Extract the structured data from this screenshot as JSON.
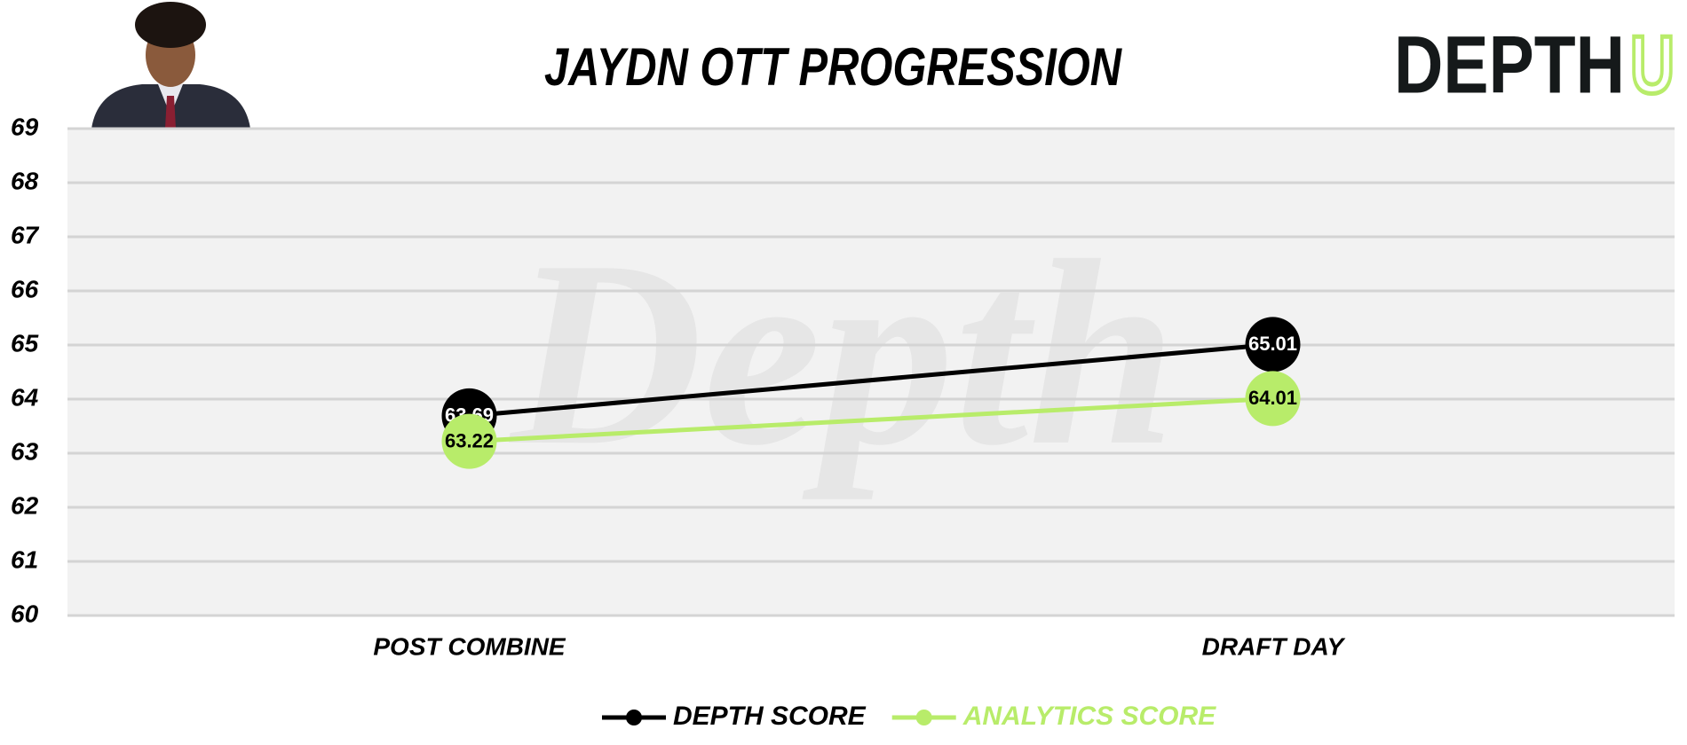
{
  "header": {
    "title": "JAYDN OTT PROGRESSION",
    "logo": {
      "main": "DEPTH",
      "accent": "U"
    }
  },
  "watermark": "Depth",
  "chart_data": {
    "type": "line",
    "categories": [
      "POST COMBINE",
      "DRAFT DAY"
    ],
    "series": [
      {
        "name": "DEPTH SCORE",
        "color": "#000000",
        "values": [
          63.69,
          65.01
        ]
      },
      {
        "name": "ANALYTICS SCORE",
        "color": "#b8ec6a",
        "values": [
          63.22,
          64.01
        ]
      }
    ],
    "ylim": [
      60,
      69
    ],
    "yticks": [
      60,
      61,
      62,
      63,
      64,
      65,
      66,
      67,
      68,
      69
    ],
    "grid": true,
    "legend": "bottom"
  }
}
